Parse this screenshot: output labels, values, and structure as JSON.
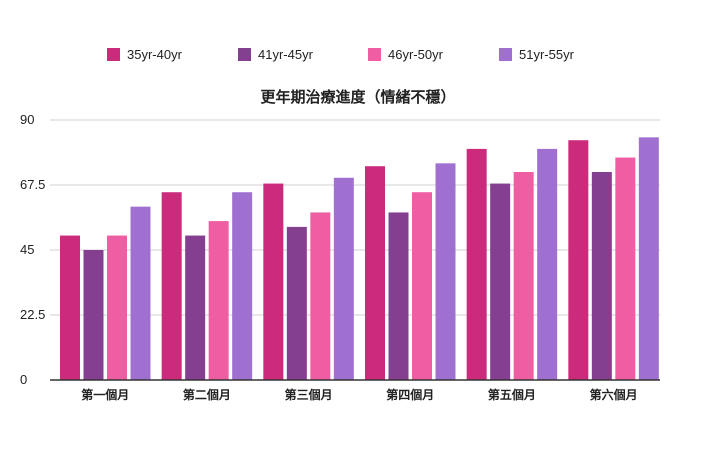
{
  "chart_data": {
    "type": "bar",
    "title": "更年期治療進度（情緒不穩）",
    "categories": [
      "第一個月",
      "第二個月",
      "第三個月",
      "第四個月",
      "第五個月",
      "第六個月"
    ],
    "series": [
      {
        "name": "35yr-40yr",
        "color": "#cc2a7a",
        "values": [
          50,
          65,
          68,
          74,
          80,
          83
        ]
      },
      {
        "name": "41yr-45yr",
        "color": "#843f91",
        "values": [
          45,
          50,
          53,
          58,
          68,
          72
        ]
      },
      {
        "name": "46yr-50yr",
        "color": "#ef5da2",
        "values": [
          50,
          55,
          58,
          65,
          72,
          77
        ]
      },
      {
        "name": "51yr-55yr",
        "color": "#a070d0",
        "values": [
          60,
          65,
          70,
          75,
          80,
          84
        ]
      }
    ],
    "yticks": [
      "0",
      "22.5",
      "45",
      "67.5",
      "90"
    ],
    "ylim": [
      0,
      90
    ],
    "grid": true,
    "legend": "top"
  }
}
